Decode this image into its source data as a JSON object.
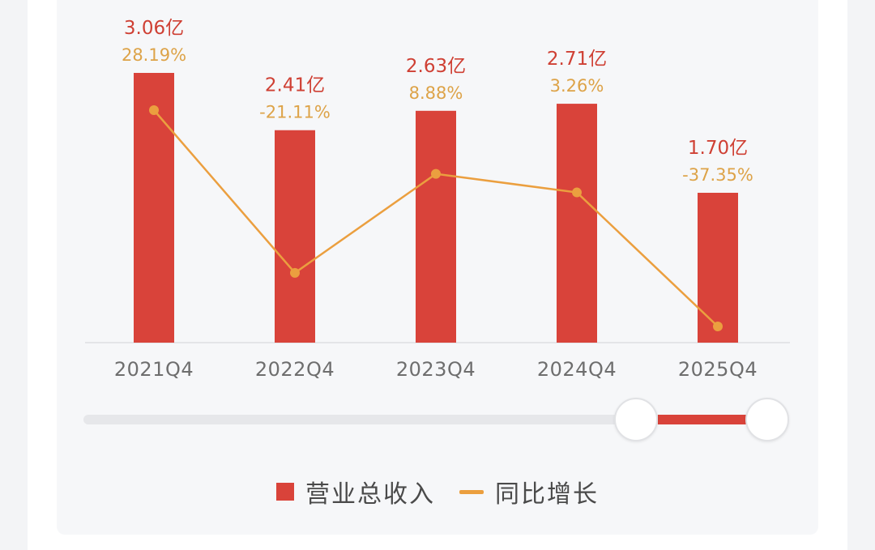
{
  "chart_data": {
    "type": "bar+line",
    "categories": [
      "2021Q4",
      "2022Q4",
      "2023Q4",
      "2024Q4",
      "2025Q4"
    ],
    "series": [
      {
        "name": "营业总收入",
        "type": "bar",
        "values": [
          3.06,
          2.41,
          2.63,
          2.71,
          1.7
        ],
        "labels": [
          "3.06亿",
          "2.41亿",
          "2.63亿",
          "2.71亿",
          "1.70亿"
        ],
        "color": "#d9433a"
      },
      {
        "name": "同比增长",
        "type": "line",
        "values": [
          28.19,
          -21.11,
          8.88,
          3.26,
          -37.35
        ],
        "labels": [
          "28.19%",
          "-21.11%",
          "8.88%",
          "3.26%",
          "-37.35%"
        ],
        "color": "#eb9f3f"
      }
    ],
    "grid": false,
    "legend_position": "bottom"
  },
  "legend": {
    "revenue_label": "营业总收入",
    "growth_label": "同比增长"
  },
  "slider": {
    "range_start": 0.8,
    "range_end": 1.0
  }
}
